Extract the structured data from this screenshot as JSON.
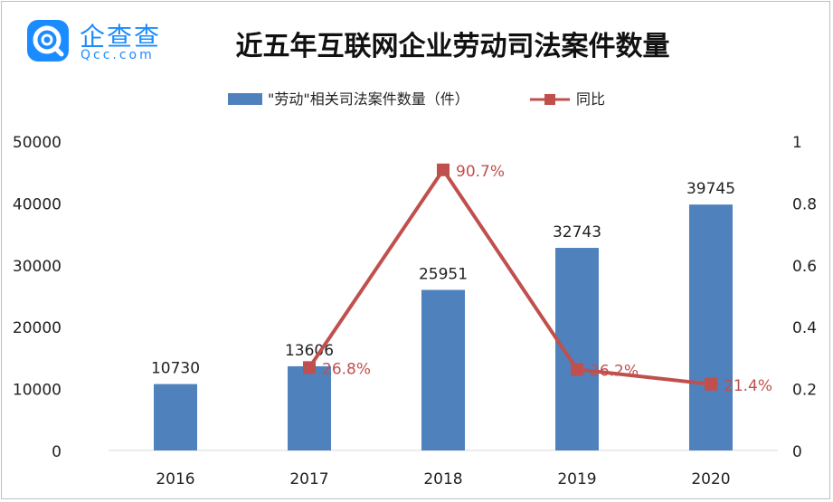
{
  "logo": {
    "name": "企查查",
    "domain": "Qcc.com"
  },
  "chart_data": {
    "type": "bar",
    "title": "近五年互联网企业劳动司法案件数量",
    "categories": [
      "2016",
      "2017",
      "2018",
      "2019",
      "2020"
    ],
    "series": [
      {
        "name": "\"劳动\"相关司法案件数量（件）",
        "type": "bar",
        "axis": "left",
        "values": [
          10730,
          13606,
          25951,
          32743,
          39745
        ],
        "labels": [
          "10730",
          "13606",
          "25951",
          "32743",
          "39745"
        ],
        "color": "#4f81bd"
      },
      {
        "name": "同比",
        "type": "line",
        "axis": "right",
        "values": [
          null,
          0.268,
          0.907,
          0.262,
          0.214
        ],
        "labels": [
          "",
          "26.8%",
          "90.7%",
          "26.2%",
          "21.4%"
        ],
        "color": "#c0504d"
      }
    ],
    "y_left": {
      "ylim": [
        0,
        50000
      ],
      "ticks": [
        "0",
        "10000",
        "20000",
        "30000",
        "40000",
        "50000"
      ]
    },
    "y_right": {
      "ylim": [
        0,
        1
      ],
      "ticks": [
        "0",
        "0.2",
        "0.4",
        "0.6",
        "0.8",
        "1"
      ]
    },
    "grid": false,
    "legend_position": "top-center"
  }
}
